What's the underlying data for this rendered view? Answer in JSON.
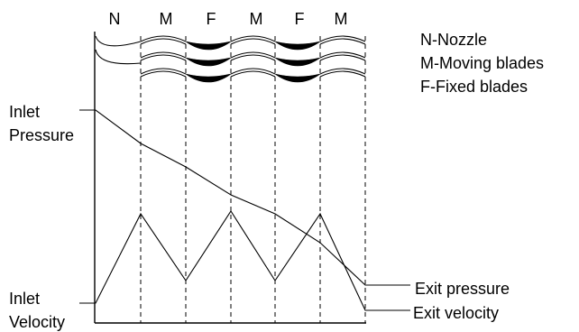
{
  "stages": [
    "N",
    "M",
    "F",
    "M",
    "F",
    "M"
  ],
  "legend": [
    "N-Nozzle",
    "M-Moving blades",
    "F-Fixed blades"
  ],
  "labels": {
    "inlet_pressure_1": "Inlet",
    "inlet_pressure_2": "Pressure",
    "inlet_velocity_1": "Inlet",
    "inlet_velocity_2": "Velocity",
    "exit_pressure": "Exit pressure",
    "exit_velocity": "Exit velocity"
  },
  "colors": {
    "ink": "#000000",
    "background": "#ffffff"
  }
}
